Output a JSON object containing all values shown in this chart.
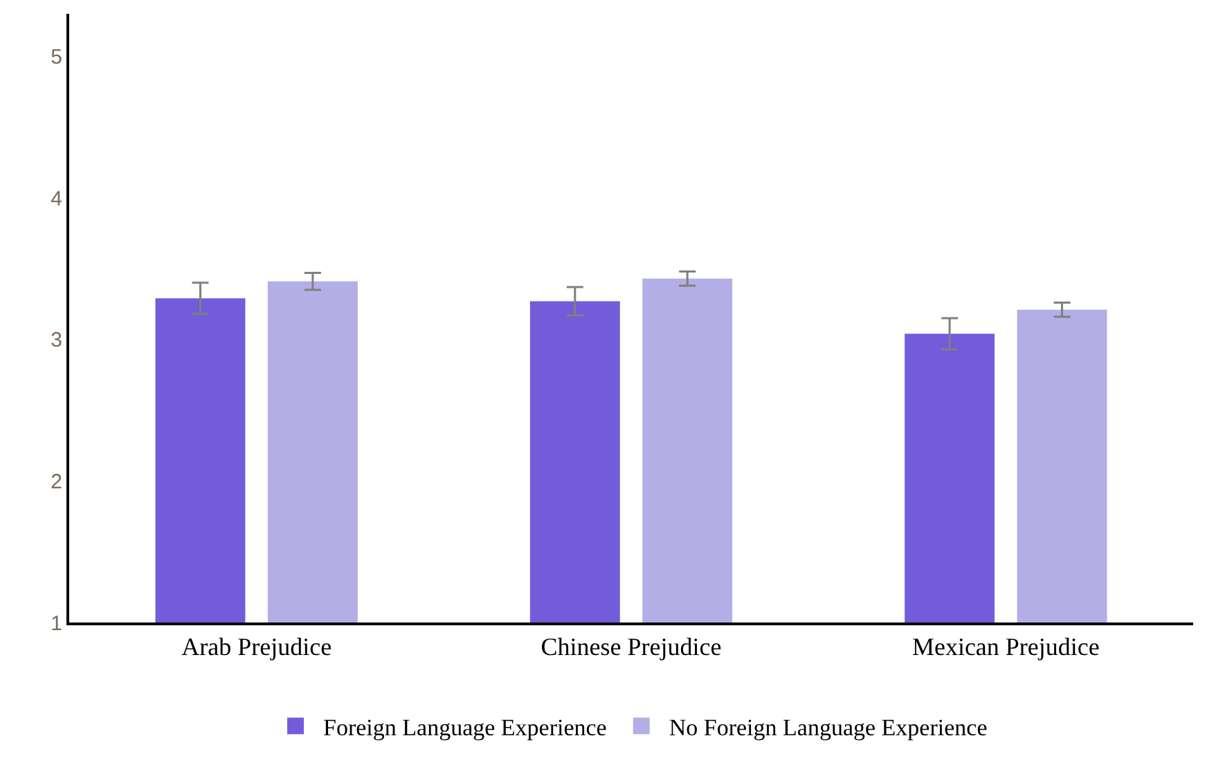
{
  "chart_data": {
    "type": "bar",
    "categories": [
      "Arab Prejudice",
      "Chinese Prejudice",
      "Mexican Prejudice"
    ],
    "series": [
      {
        "name": "Foreign Language Experience",
        "color": "#735cd9",
        "values": [
          3.29,
          3.27,
          3.04
        ],
        "errors": [
          0.11,
          0.1,
          0.11
        ]
      },
      {
        "name": "No Foreign Language Experience",
        "color": "#b4aee6",
        "values": [
          3.41,
          3.43,
          3.21
        ],
        "errors": [
          0.06,
          0.05,
          0.05
        ]
      }
    ],
    "ylim": [
      1,
      5.3
    ],
    "yticks": [
      1,
      2,
      3,
      4,
      5
    ],
    "grid": false,
    "legend": "bottom"
  }
}
